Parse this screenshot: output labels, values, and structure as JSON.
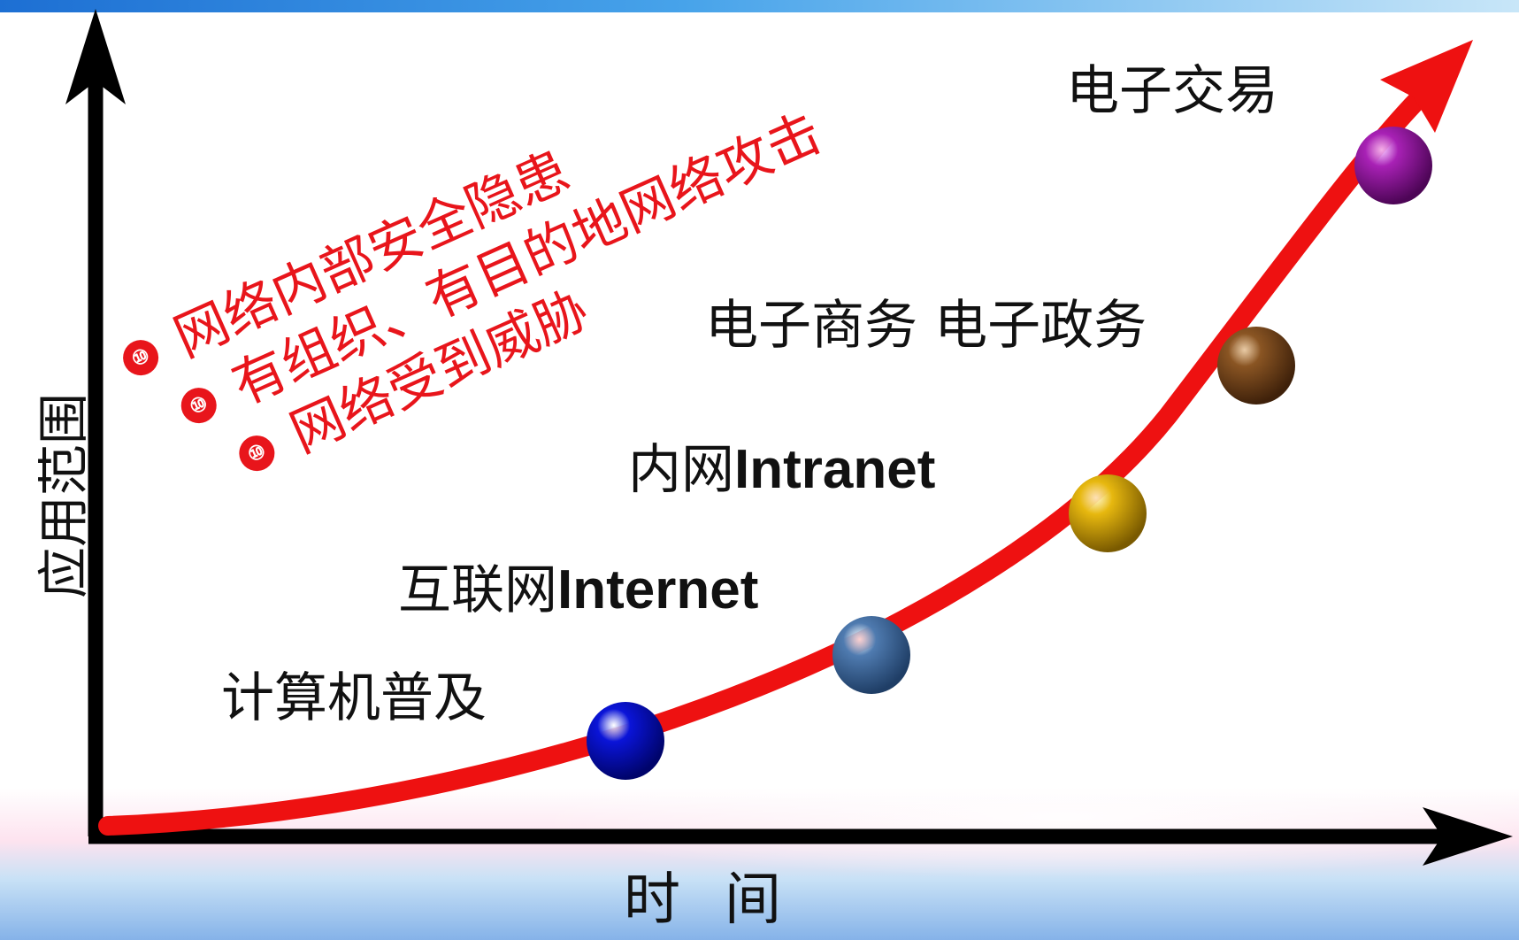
{
  "axes": {
    "y_label": "应用范围",
    "x_label": "时间"
  },
  "threats": {
    "bullet_glyph": "⑩",
    "color": "#e8151b",
    "lines": [
      "网络内部安全隐患",
      "有组织、有目的地网络攻击",
      "网络受到威胁"
    ]
  },
  "stages": [
    {
      "text": "计算机普及",
      "bold": "",
      "ball_color": "#0a14d8"
    },
    {
      "text": "互联网",
      "bold": "Internet",
      "ball_color": "#3f6a9c"
    },
    {
      "text": "内网",
      "bold": "Intranet",
      "ball_color": "#d6a70a"
    },
    {
      "text": "电子商务 电子政务",
      "bold": "",
      "ball_color": "#7a4a1e"
    },
    {
      "text": "电子交易",
      "bold": "",
      "ball_color": "#9c14a8"
    }
  ],
  "colors": {
    "curve": "#ee1111",
    "axis": "#000000"
  }
}
